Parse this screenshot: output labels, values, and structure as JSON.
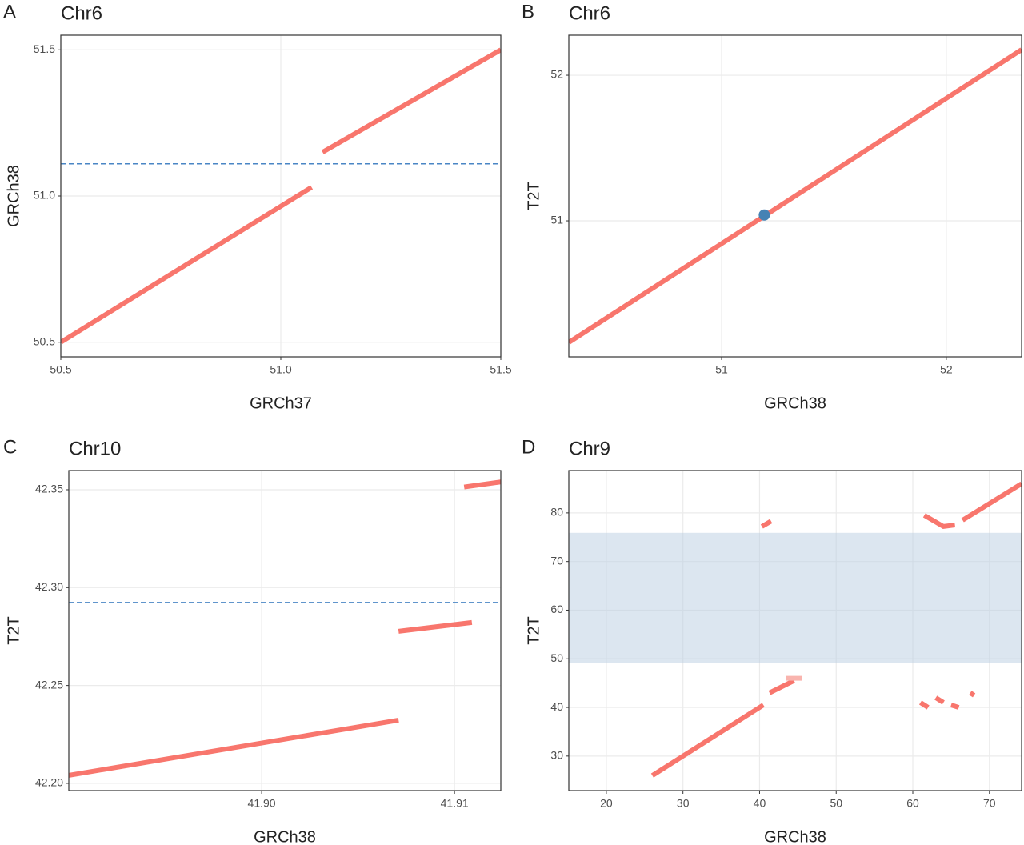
{
  "chart_data": [
    {
      "type": "line",
      "panel": "A",
      "title": "Chr6",
      "x_label": "GRCh37",
      "y_label": "GRCh38",
      "xlim": [
        50.5,
        51.5
      ],
      "ylim": [
        50.45,
        51.55
      ],
      "xticks": [
        50.5,
        {
          "value": 51,
          "label": "51.0"
        },
        51.5
      ],
      "yticks": [
        50.5,
        {
          "value": 51,
          "label": "51.0"
        },
        51.5
      ],
      "grid": true,
      "hline": {
        "value": 51.11,
        "color": "#4a86c5"
      },
      "series": [
        {
          "color": "#f8766d",
          "x": [
            50.5,
            51.07
          ],
          "values": [
            50.5,
            51.03
          ]
        },
        {
          "color": "#f8766d",
          "x": [
            51.095,
            51.5
          ],
          "values": [
            51.15,
            51.5
          ]
        }
      ]
    },
    {
      "type": "line",
      "panel": "B",
      "title": "Chr6",
      "x_label": "GRCh38",
      "y_label": "T2T",
      "xlim": [
        50.32,
        52.335
      ],
      "ylim": [
        50.066,
        52.275
      ],
      "xticks": [
        51,
        52
      ],
      "yticks": [
        51,
        52
      ],
      "grid": true,
      "points": {
        "color": "#4682b4",
        "x": [
          51.19
        ],
        "values": [
          51.04
        ]
      },
      "series": [
        {
          "color": "#f8766d",
          "x": [
            50.32,
            52.335
          ],
          "values": [
            50.165,
            52.176
          ]
        }
      ]
    },
    {
      "type": "line",
      "panel": "C",
      "title": "Chr10",
      "x_label": "GRCh38",
      "y_label": "T2T",
      "xlim": [
        41.89,
        41.9124
      ],
      "ylim": [
        42.1963,
        42.3598
      ],
      "xticks": [
        {
          "value": 41.9,
          "label": "41.90"
        },
        41.91
      ],
      "yticks": [
        {
          "value": 42.2,
          "label": "42.20"
        },
        42.25,
        {
          "value": 42.3,
          "label": "42.30"
        },
        42.35
      ],
      "grid": true,
      "hline": {
        "value": 42.2924,
        "color": "#4a86c5"
      },
      "series": [
        {
          "color": "#f8766d",
          "x": [
            41.89,
            41.9071
          ],
          "values": [
            42.2041,
            42.2323
          ]
        },
        {
          "color": "#f8766d",
          "x": [
            41.9071,
            41.9109
          ],
          "values": [
            42.2777,
            42.2822
          ]
        },
        {
          "color": "#f8766d",
          "x": [
            41.9105,
            41.9124
          ],
          "values": [
            42.3514,
            42.354
          ]
        }
      ]
    },
    {
      "type": "line",
      "panel": "D",
      "title": "Chr9",
      "x_label": "GRCh38",
      "y_label": "T2T",
      "xlim": [
        15.1,
        74.2
      ],
      "ylim": [
        22.9,
        88.7
      ],
      "xticks": [
        20,
        30,
        40,
        50,
        60,
        70
      ],
      "yticks": [
        30,
        40,
        50,
        60,
        70,
        80
      ],
      "grid": true,
      "band": {
        "values": [
          49.1,
          75.9
        ],
        "color": "#b9cde2"
      },
      "series": [
        {
          "color": "#f8766d",
          "x": [
            26,
            40.5
          ],
          "values": [
            26,
            40.5
          ]
        },
        {
          "color": "#f8766d",
          "x": [
            41.3,
            44.5
          ],
          "values": [
            43,
            45.5
          ]
        },
        {
          "color": "#f9b4ae",
          "x": [
            43.5,
            45.5
          ],
          "values": [
            46,
            46
          ]
        },
        {
          "color": "#f8766d",
          "x": [
            40.3,
            41.5
          ],
          "values": [
            77.2,
            78.3
          ]
        },
        {
          "color": "#f8766d",
          "x": [
            61.5,
            64,
            65.5
          ],
          "values": [
            79.5,
            77.2,
            77.5
          ]
        },
        {
          "color": "#f8766d",
          "x": [
            66.5,
            74.2
          ],
          "values": [
            78.5,
            86
          ]
        },
        {
          "color": "#f8766d",
          "x": [
            61,
            62
          ],
          "values": [
            41,
            40
          ]
        },
        {
          "color": "#f8766d",
          "x": [
            63,
            64
          ],
          "values": [
            42,
            41
          ]
        },
        {
          "color": "#f8766d",
          "x": [
            65,
            66
          ],
          "values": [
            40.5,
            40
          ]
        },
        {
          "color": "#f8766d",
          "x": [
            67.5,
            68
          ],
          "values": [
            43,
            42.5
          ]
        }
      ]
    }
  ]
}
